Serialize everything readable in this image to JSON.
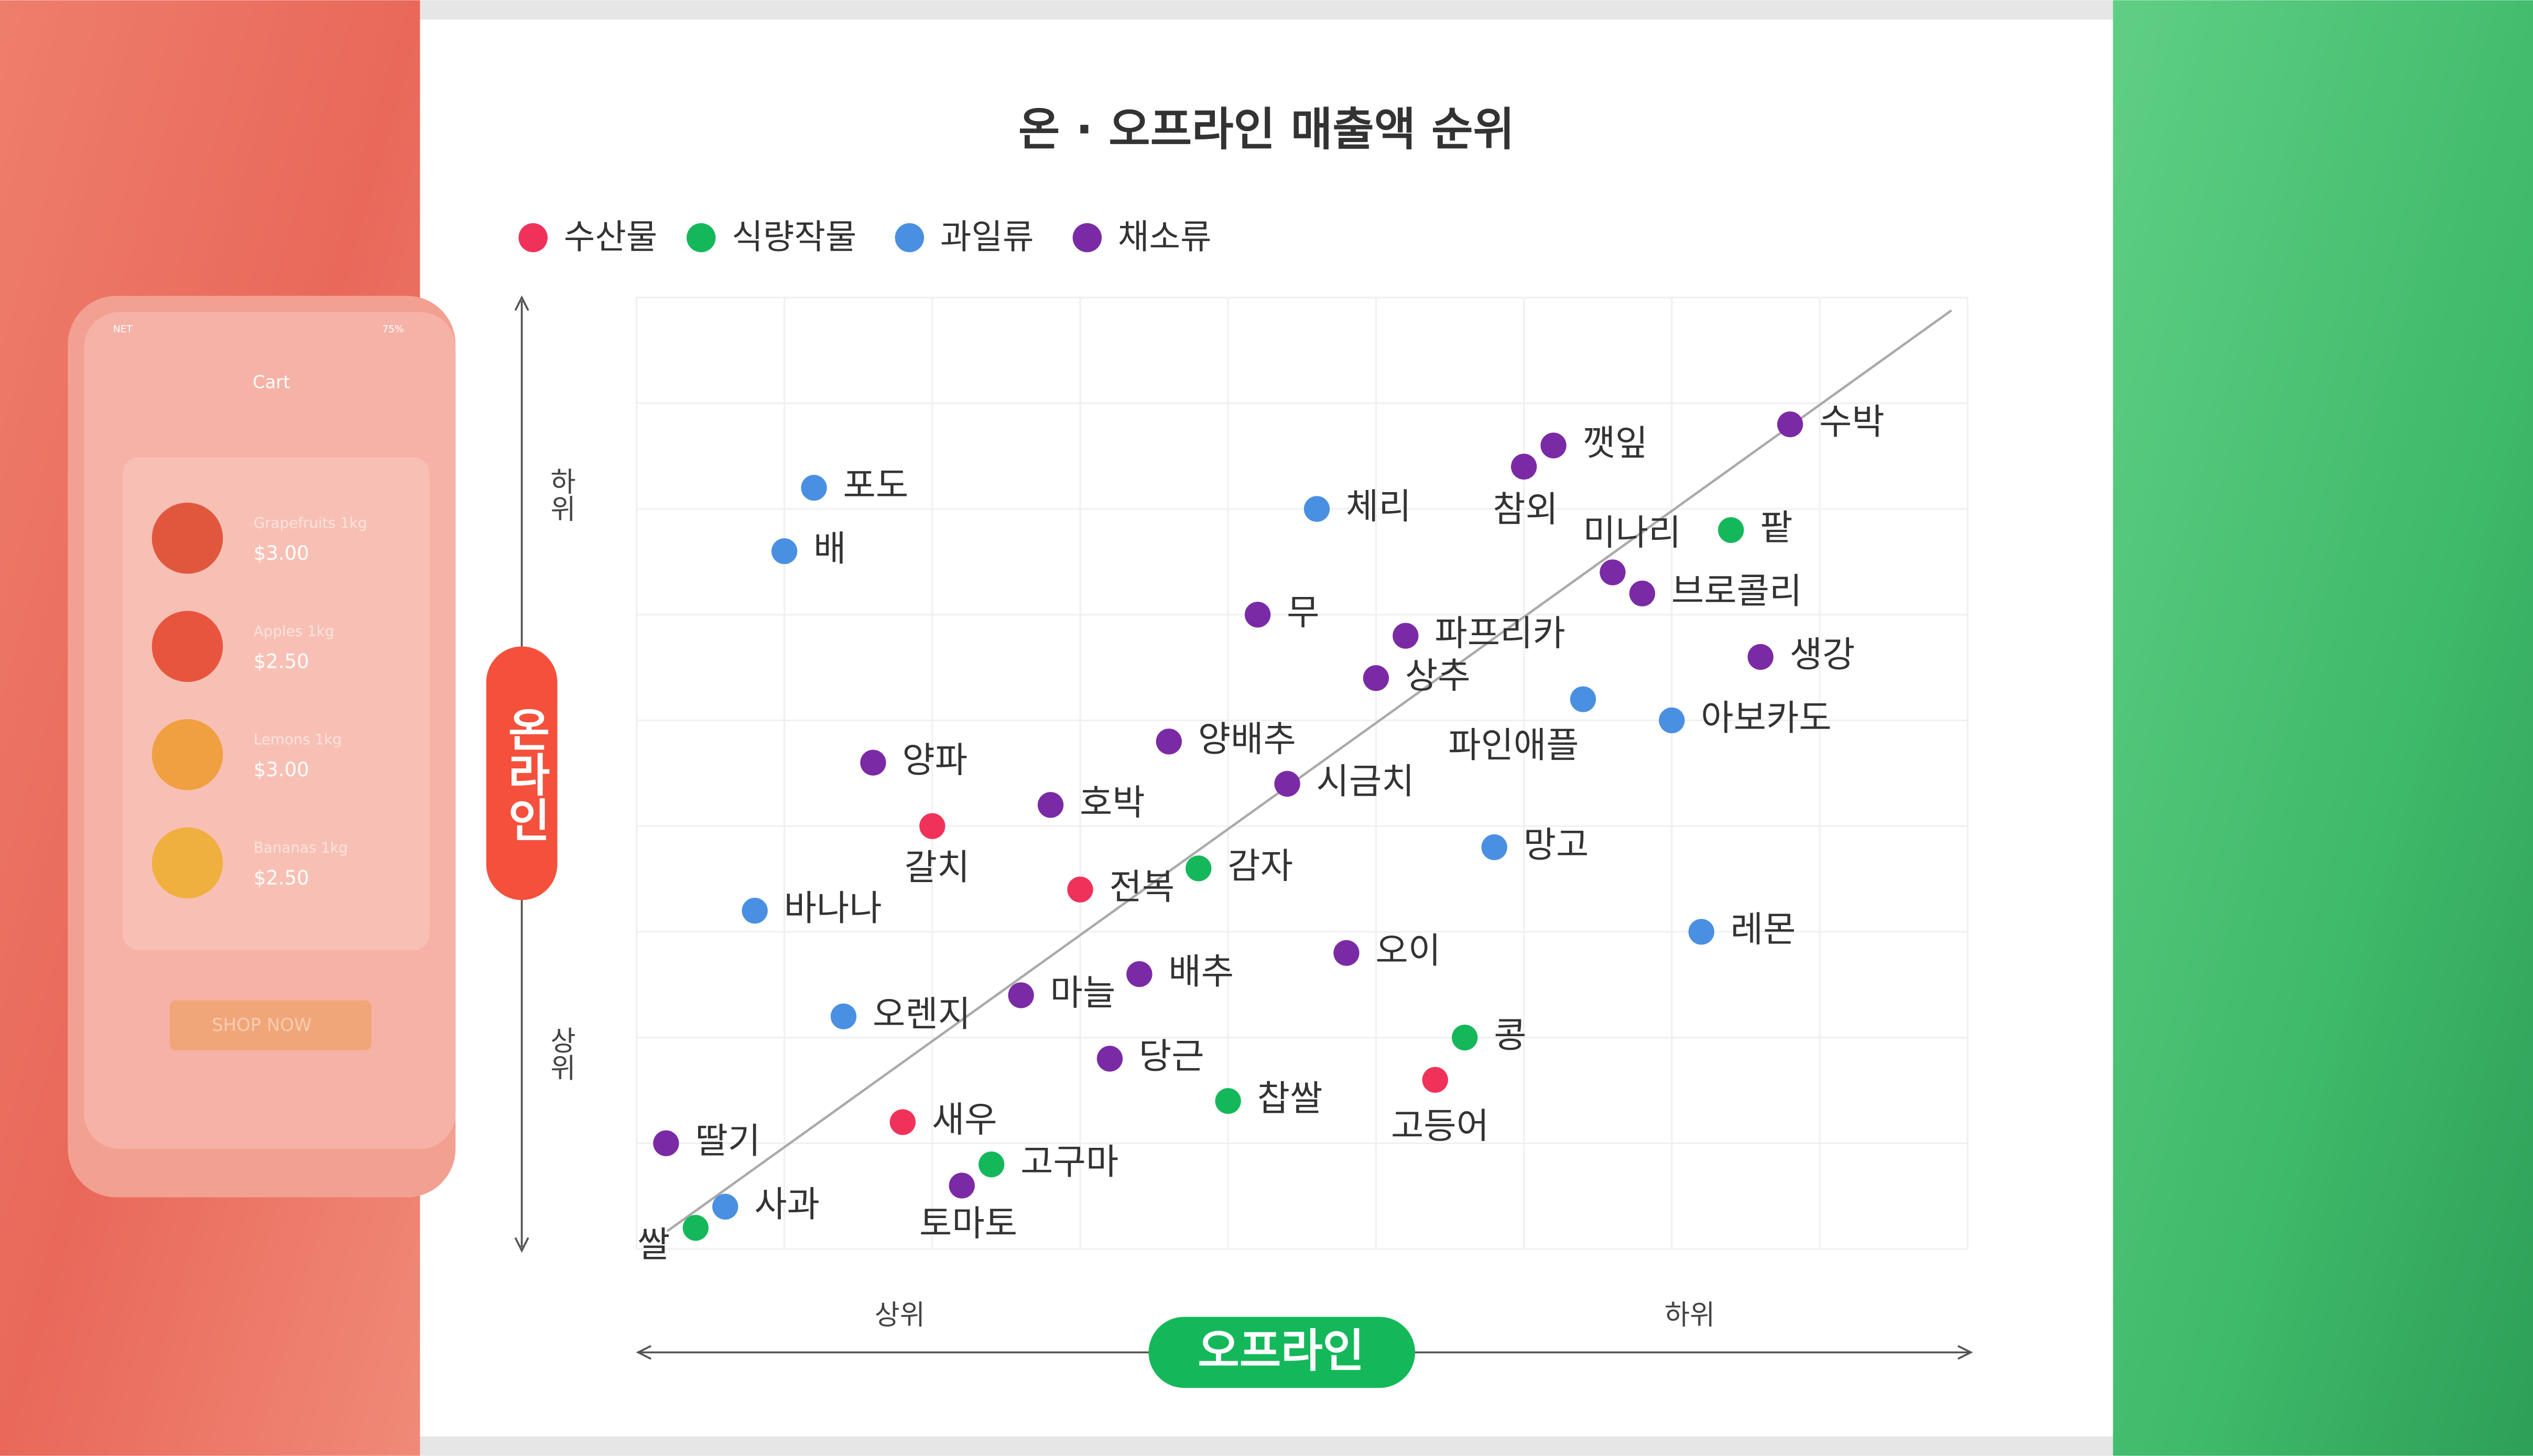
{
  "phone": {
    "status": "NET",
    "battery": "75%",
    "title": "Cart",
    "items": [
      {
        "name": "Grapefruits 1kg",
        "price": "$3.00"
      },
      {
        "name": "Apples 1kg",
        "price": "$2.50"
      },
      {
        "name": "Lemons 1kg",
        "price": "$3.00"
      },
      {
        "name": "Bananas 1kg",
        "price": "$2.50"
      }
    ],
    "button": "SHOP NOW"
  },
  "chart_data": {
    "type": "scatter",
    "title": "온 · 오프라인 매출액 순위",
    "x_label": "오프라인",
    "y_label": "온라인",
    "x_ends": [
      "상위",
      "하위"
    ],
    "y_ends": [
      "상위",
      "하위"
    ],
    "xlim": [
      0,
      9
    ],
    "ylim": [
      0,
      9
    ],
    "xticks": [
      0,
      1,
      2,
      3,
      4,
      5,
      6,
      7,
      8,
      9
    ],
    "yticks": [
      0,
      1,
      2,
      3,
      4,
      5,
      6,
      7,
      8,
      9
    ],
    "grid": true,
    "series": [
      {
        "name": "수산물",
        "color": "#f0325a",
        "labels": [
          "갈치",
          "전복",
          "새우",
          "고등어"
        ],
        "x": [
          2.0,
          3.0,
          1.8,
          5.4
        ],
        "values": [
          4.0,
          3.4,
          1.2,
          1.6
        ]
      },
      {
        "name": "식량작물",
        "color": "#14b85a",
        "labels": [
          "감자",
          "팥",
          "콩",
          "찹쌀",
          "고구마",
          "쌀"
        ],
        "x": [
          3.8,
          7.4,
          5.6,
          4.0,
          2.4,
          0.4
        ],
        "values": [
          3.6,
          6.8,
          2.0,
          1.4,
          0.8,
          0.2
        ]
      },
      {
        "name": "과일류",
        "color": "#4a90e2",
        "labels": [
          "포도",
          "배",
          "체리",
          "파인애플",
          "아보카도",
          "망고",
          "레몬",
          "바나나",
          "오렌지",
          "사과"
        ],
        "x": [
          1.2,
          1.0,
          4.6,
          6.4,
          7.0,
          5.8,
          7.2,
          0.8,
          1.4,
          0.6
        ],
        "values": [
          7.2,
          6.6,
          7.0,
          5.2,
          5.0,
          3.8,
          3.0,
          3.2,
          2.2,
          0.4
        ]
      },
      {
        "name": "채소류",
        "color": "#7b2aa6",
        "labels": [
          "수박",
          "깻잎",
          "참외",
          "미나리",
          "브로콜리",
          "무",
          "파프리카",
          "상추",
          "생강",
          "양배추",
          "시금치",
          "양파",
          "호박",
          "오이",
          "배추",
          "마늘",
          "당근",
          "딸기",
          "토마토"
        ],
        "x": [
          7.8,
          6.2,
          6.0,
          6.6,
          6.8,
          4.2,
          5.2,
          5.0,
          7.6,
          3.6,
          4.4,
          1.6,
          2.8,
          4.8,
          3.4,
          2.6,
          3.2,
          0.2,
          2.2
        ],
        "values": [
          7.8,
          7.6,
          7.4,
          6.4,
          6.2,
          6.0,
          5.8,
          5.4,
          5.6,
          4.8,
          4.4,
          4.6,
          4.2,
          2.8,
          2.6,
          2.4,
          1.8,
          1.0,
          0.6
        ]
      }
    ]
  }
}
